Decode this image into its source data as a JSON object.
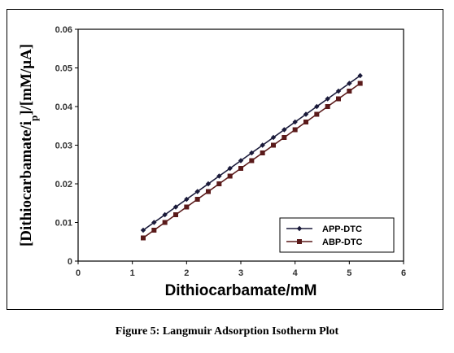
{
  "caption": "Figure 5: Langmuir Adsorption Isotherm Plot",
  "chart_data": {
    "type": "line",
    "title": "",
    "xlabel": "Dithiocarbamate/mM",
    "ylabel": "[Dithiocarbamate/ip]/[mM/μA]",
    "xlim": [
      0,
      6
    ],
    "ylim": [
      0,
      0.06
    ],
    "xticks": [
      "0",
      "1",
      "2",
      "3",
      "4",
      "5",
      "6"
    ],
    "yticks": [
      "0",
      "0.01",
      "0.02",
      "0.03",
      "0.04",
      "0.05",
      "0.06"
    ],
    "grid": false,
    "legend_position": "bottom-right",
    "series": [
      {
        "name": "APP-DTC",
        "color": "#1a1a3a",
        "marker": "diamond",
        "x": [
          1.2,
          1.4,
          1.6,
          1.8,
          2.0,
          2.2,
          2.4,
          2.6,
          2.8,
          3.0,
          3.2,
          3.4,
          3.6,
          3.8,
          4.0,
          4.2,
          4.4,
          4.6,
          4.8,
          5.0,
          5.2
        ],
        "y": [
          0.008,
          0.01,
          0.012,
          0.014,
          0.016,
          0.018,
          0.02,
          0.022,
          0.024,
          0.026,
          0.028,
          0.03,
          0.032,
          0.034,
          0.036,
          0.038,
          0.04,
          0.042,
          0.044,
          0.046,
          0.048
        ]
      },
      {
        "name": "ABP-DTC",
        "color": "#5a1a1a",
        "marker": "square",
        "x": [
          1.2,
          1.4,
          1.6,
          1.8,
          2.0,
          2.2,
          2.4,
          2.6,
          2.8,
          3.0,
          3.2,
          3.4,
          3.6,
          3.8,
          4.0,
          4.2,
          4.4,
          4.6,
          4.8,
          5.0,
          5.2
        ],
        "y": [
          0.006,
          0.008,
          0.01,
          0.012,
          0.014,
          0.016,
          0.018,
          0.02,
          0.022,
          0.024,
          0.026,
          0.028,
          0.03,
          0.032,
          0.034,
          0.036,
          0.038,
          0.04,
          0.042,
          0.044,
          0.046
        ]
      }
    ]
  }
}
